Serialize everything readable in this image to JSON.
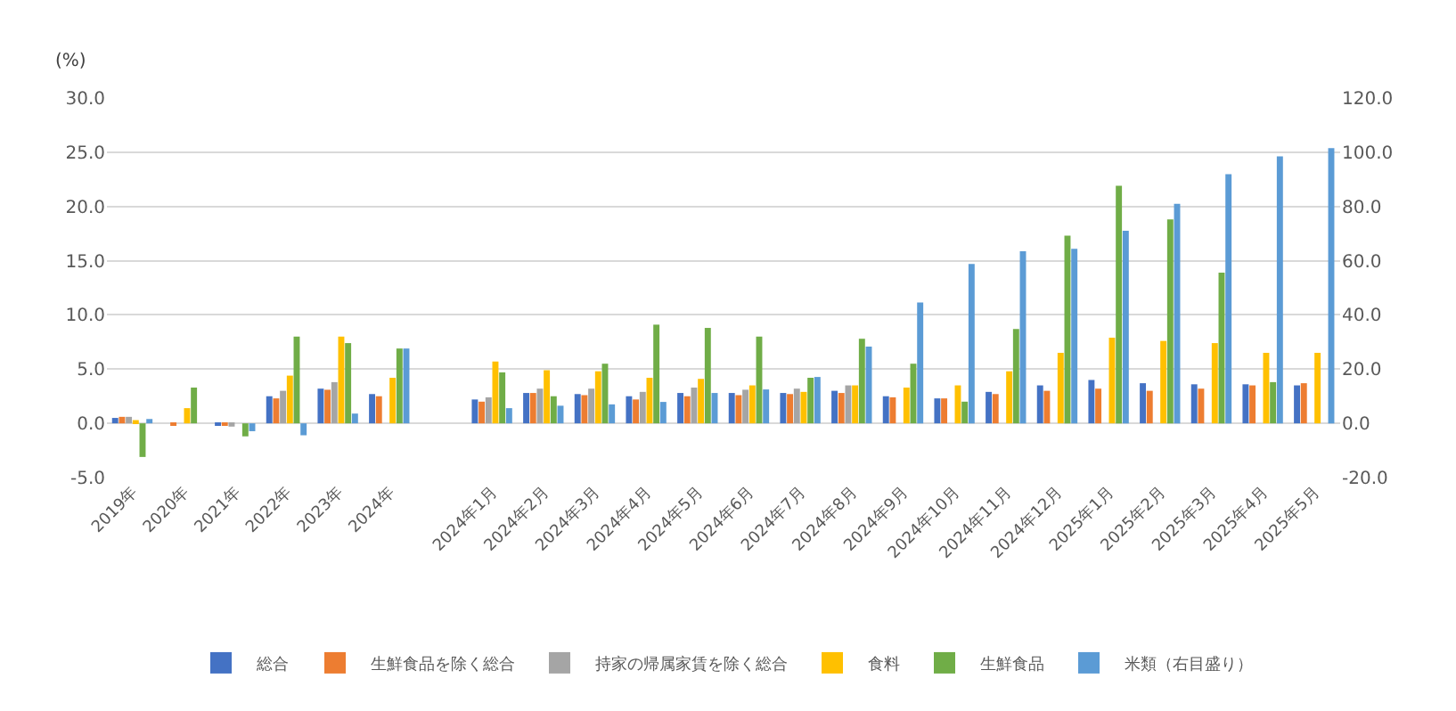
{
  "chart_data": {
    "type": "bar",
    "ylabel": "(%)",
    "categories": [
      "2019年",
      "2020年",
      "2021年",
      "2022年",
      "2023年",
      "2024年",
      null,
      "2024年1月",
      "2024年2月",
      "2024年3月",
      "2024年4月",
      "2024年5月",
      "2024年6月",
      "2024年7月",
      "2024年8月",
      "2024年9月",
      "2024年10月",
      "2024年11月",
      "2024年12月",
      "2025年1月",
      "2025年2月",
      "2025年3月",
      "2025年4月",
      "2025年5月"
    ],
    "series": [
      {
        "name": "総合",
        "color": "#4472c4",
        "values": [
          0.5,
          0.0,
          -0.2,
          2.5,
          3.2,
          2.7,
          null,
          2.2,
          2.8,
          2.7,
          2.5,
          2.8,
          2.8,
          2.8,
          3.0,
          2.5,
          2.3,
          2.9,
          3.5,
          4.0,
          3.7,
          3.6,
          3.6,
          3.5
        ]
      },
      {
        "name": "生鮮食品を除く総合",
        "color": "#ed7d31",
        "values": [
          0.6,
          -0.2,
          -0.2,
          2.3,
          3.1,
          2.5,
          null,
          2.0,
          2.8,
          2.6,
          2.2,
          2.5,
          2.6,
          2.7,
          2.8,
          2.4,
          2.3,
          2.7,
          3.0,
          3.2,
          3.0,
          3.2,
          3.5,
          3.7
        ]
      },
      {
        "name": "持家の帰属家賃を除く総合",
        "color": "#a5a5a5",
        "values": [
          0.6,
          0.0,
          -0.3,
          3.0,
          3.8,
          null,
          null,
          2.4,
          3.2,
          3.2,
          2.9,
          3.3,
          3.1,
          3.2,
          3.5,
          null,
          null,
          null,
          null,
          null,
          null,
          null,
          null,
          null
        ]
      },
      {
        "name": "食料",
        "color": "#ffc000",
        "values": [
          0.3,
          1.4,
          0.0,
          4.4,
          8.0,
          4.2,
          null,
          5.7,
          4.9,
          4.8,
          4.2,
          4.1,
          3.5,
          2.9,
          3.5,
          3.3,
          3.5,
          4.8,
          6.5,
          7.9,
          7.6,
          7.4,
          6.5,
          6.5
        ]
      },
      {
        "name": "生鮮食品",
        "color": "#70ad47",
        "values": [
          -3.1,
          3.3,
          -1.2,
          8.0,
          7.4,
          6.9,
          null,
          4.7,
          2.5,
          5.5,
          9.1,
          8.8,
          8.0,
          4.2,
          7.8,
          5.5,
          2.0,
          8.7,
          17.3,
          21.9,
          18.8,
          13.9,
          3.8,
          null
        ]
      },
      {
        "name": "米類（右目盛り）",
        "color": "#5b9bd5",
        "axis": "y2",
        "values": [
          1.6,
          0.0,
          -2.9,
          -4.4,
          3.6,
          27.6,
          null,
          5.6,
          6.5,
          7.0,
          7.9,
          11.2,
          12.5,
          17.1,
          28.3,
          44.6,
          58.8,
          63.5,
          64.4,
          71.0,
          81.0,
          91.9,
          98.5,
          101.5
        ]
      }
    ],
    "ylim": [
      -5,
      30
    ],
    "yticks": [
      {
        "value": -5,
        "label": "-5.0"
      },
      {
        "value": 0,
        "label": "0.0"
      },
      {
        "value": 5,
        "label": "5.0"
      },
      {
        "value": 10,
        "label": "10.0"
      },
      {
        "value": 15,
        "label": "15.0"
      },
      {
        "value": 20,
        "label": "20.0"
      },
      {
        "value": 25,
        "label": "25.0"
      },
      {
        "value": 30,
        "label": "30.0"
      }
    ],
    "y2lim": [
      -20,
      120
    ],
    "y2ticks": [
      {
        "value": -20,
        "label": "-20.0"
      },
      {
        "value": 0,
        "label": "0.0"
      },
      {
        "value": 20,
        "label": "20.0"
      },
      {
        "value": 40,
        "label": "40.0"
      },
      {
        "value": 60,
        "label": "60.0"
      },
      {
        "value": 80,
        "label": "80.0"
      },
      {
        "value": 100,
        "label": "100.0"
      },
      {
        "value": 120,
        "label": "120.0"
      }
    ],
    "grid": "y",
    "legend": "bottom"
  }
}
